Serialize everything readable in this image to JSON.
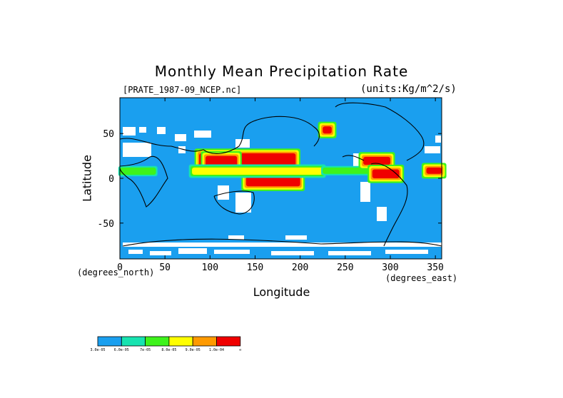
{
  "chart_data": {
    "type": "heatmap",
    "title": "Monthly Mean Precipitation Rate",
    "dataset_label": "[PRATE_1987-09_NCEP.nc]",
    "units_label": "(units:Kg/m^2/s)",
    "xlabel": "Longitude",
    "ylabel": "Latitude",
    "x_unit_label": "(degrees_east)",
    "y_unit_label": "(degrees_north)",
    "xlim": [
      0,
      357
    ],
    "ylim": [
      -90,
      90
    ],
    "x_ticks": [
      0,
      50,
      100,
      150,
      200,
      250,
      300,
      350
    ],
    "y_ticks": [
      50,
      0,
      -50
    ],
    "legend_placement": "bottom-left",
    "colorbar": {
      "colors": [
        "#1a9fef",
        "#17e3b0",
        "#3ef21b",
        "#ffff00",
        "#ff9a00",
        "#f00000"
      ],
      "labels": [
        "3.0e-05",
        "6.0e-05",
        "7e-05",
        "8.0e-05",
        "9.0e-05",
        "1.0e-04",
        "∞"
      ]
    },
    "background_color": "#1a9fef",
    "missing_color": "#ffffff",
    "precip_regions": [
      {
        "lon": [
          88,
          195
        ],
        "lat": [
          12,
          28
        ],
        "level": 5
      },
      {
        "lon": [
          140,
          200
        ],
        "lat": [
          -9,
          2
        ],
        "level": 5
      },
      {
        "lon": [
          95,
          130
        ],
        "lat": [
          8,
          25
        ],
        "level": 5
      },
      {
        "lon": [
          80,
          225
        ],
        "lat": [
          4,
          12
        ],
        "level": 3
      },
      {
        "lon": [
          225,
          280
        ],
        "lat": [
          5,
          12
        ],
        "level": 2
      },
      {
        "lon": [
          270,
          300
        ],
        "lat": [
          15,
          24
        ],
        "level": 5
      },
      {
        "lon": [
          280,
          310
        ],
        "lat": [
          0,
          10
        ],
        "level": 5
      },
      {
        "lon": [
          340,
          357
        ],
        "lat": [
          5,
          12
        ],
        "level": 5
      },
      {
        "lon": [
          0,
          40
        ],
        "lat": [
          4,
          12
        ],
        "level": 2
      },
      {
        "lon": [
          225,
          235
        ],
        "lat": [
          50,
          58
        ],
        "level": 5
      }
    ]
  }
}
